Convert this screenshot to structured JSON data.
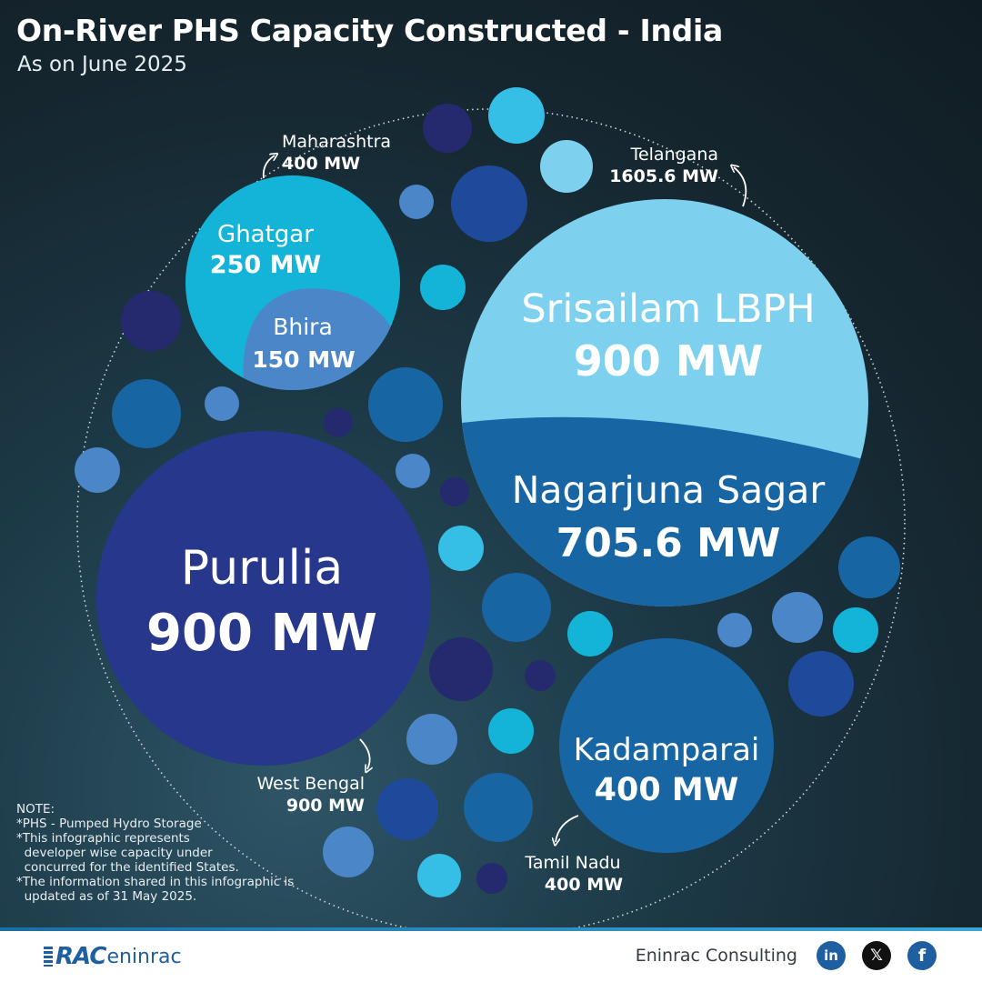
{
  "header": {
    "title": "On-River PHS Capacity Constructed - India",
    "subtitle": "As on June 2025"
  },
  "chart_data": {
    "type": "bubble",
    "unit": "MW",
    "states": [
      {
        "name": "Maharashtra",
        "value_label": "400 MW",
        "total": 400
      },
      {
        "name": "Telangana",
        "value_label": "1605.6 MW",
        "total": 1605.6
      },
      {
        "name": "West Bengal",
        "value_label": "900 MW",
        "total": 900
      },
      {
        "name": "Tamil Nadu",
        "value_label": "400 MW",
        "total": 400
      }
    ],
    "projects": [
      {
        "name": "Ghatgar",
        "state": "Maharashtra",
        "value": 250,
        "value_label": "250 MW",
        "color": "#14b4d8"
      },
      {
        "name": "Bhira",
        "state": "Maharashtra",
        "value": 150,
        "value_label": "150 MW",
        "color": "#4a86c8"
      },
      {
        "name": "Srisailam LBPH",
        "state": "Telangana",
        "value": 900,
        "value_label": "900 MW",
        "color": "#7dd0ee"
      },
      {
        "name": "Nagarjuna Sagar",
        "state": "Telangana",
        "value": 705.6,
        "value_label": "705.6 MW",
        "color": "#1766a3"
      },
      {
        "name": "Purulia",
        "state": "West Bengal",
        "value": 900,
        "value_label": "900 MW",
        "color": "#27378c"
      },
      {
        "name": "Kadamparai",
        "state": "Tamil Nadu",
        "value": 400,
        "value_label": "400 MW",
        "color": "#1766a3"
      }
    ]
  },
  "notes": {
    "heading": "NOTE:",
    "lines": [
      "*PHS - Pumped Hydro Storage",
      "*This infographic represents",
      "  developer wise capacity under",
      "  concurred for the identified States.",
      "*The information shared in this infographic is",
      "  updated as of 31 May 2025."
    ]
  },
  "footer": {
    "logo_text_rac": "RAC",
    "logo_text_en": "eninrac",
    "company": "Eninrac Consulting",
    "social": {
      "linkedin": "in",
      "x": "𝕏",
      "facebook": "f"
    }
  },
  "colors": {
    "decor_dark_navy": "#252a6e",
    "decor_blue": "#1f4a9c",
    "decor_mid": "#1766a3",
    "decor_steel": "#4a86c8",
    "decor_cyan": "#14b4d8",
    "decor_sky": "#35bfe6",
    "decor_pale": "#7dd0ee"
  }
}
